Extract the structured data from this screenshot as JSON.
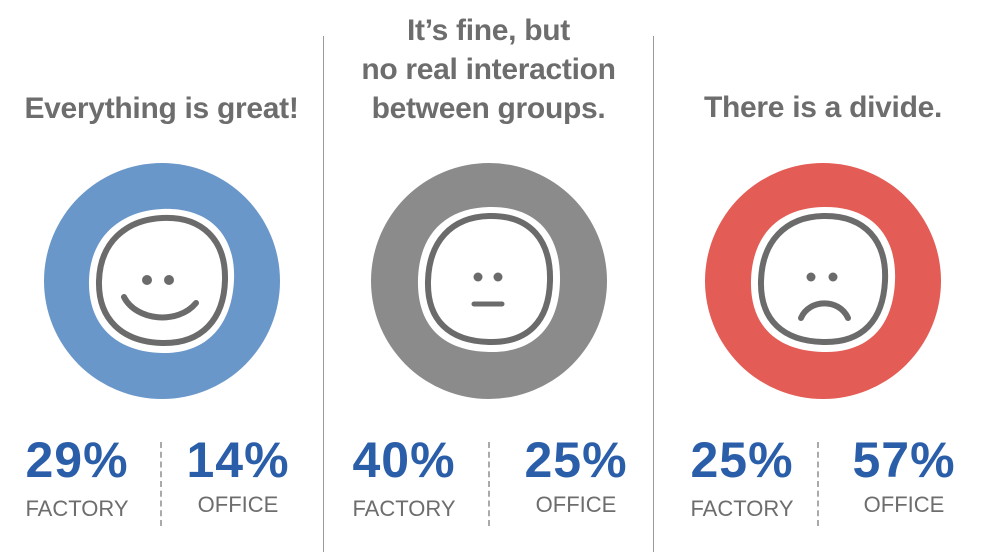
{
  "chart_data": {
    "type": "table",
    "panels": [
      {
        "title_lines": [
          "Everything is great!"
        ],
        "mood": "happy",
        "color": "#6a97c9",
        "stats": [
          {
            "label": "FACTORY",
            "value": 29,
            "display": "29%"
          },
          {
            "label": "OFFICE",
            "value": 14,
            "display": "14%"
          }
        ]
      },
      {
        "title_lines": [
          "It’s fine, but",
          "no real interaction",
          "between groups."
        ],
        "mood": "neutral",
        "color": "#8b8b8b",
        "stats": [
          {
            "label": "FACTORY",
            "value": 40,
            "display": "40%"
          },
          {
            "label": "OFFICE",
            "value": 25,
            "display": "25%"
          }
        ]
      },
      {
        "title_lines": [
          "There is a divide."
        ],
        "mood": "sad",
        "color": "#e35c55",
        "stats": [
          {
            "label": "FACTORY",
            "value": 25,
            "display": "25%"
          },
          {
            "label": "OFFICE",
            "value": 57,
            "display": "57%"
          }
        ]
      }
    ]
  },
  "colors": {
    "value_text": "#2b5ea9",
    "label_text": "#6d6d6d",
    "face_stroke": "#6b6b6b"
  }
}
